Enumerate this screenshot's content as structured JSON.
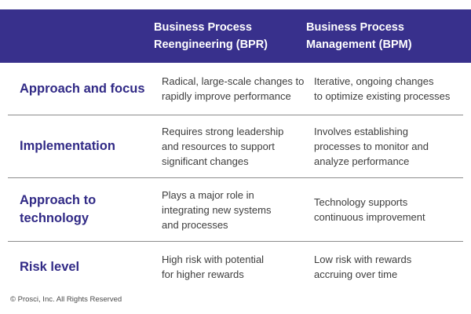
{
  "header": {
    "bpr_label": "Business Process\nReengineering (BPR)",
    "bpm_label": "Business Process\nManagement (BPM)"
  },
  "rows": [
    {
      "label": "Approach and focus",
      "bpr": "Radical, large-scale changes to\nrapidly improve performance",
      "bpm": "Iterative, ongoing changes\nto optimize existing processes"
    },
    {
      "label": "Implementation",
      "bpr": "Requires strong leadership\nand resources to support\nsignificant changes",
      "bpm": "Involves establishing\nprocesses to monitor and\nanalyze performance"
    },
    {
      "label": "Approach to\ntechnology",
      "bpr": "Plays a major role in\nintegrating new systems\nand processes",
      "bpm": "Technology supports\ncontinuous improvement"
    },
    {
      "label": "Risk level",
      "bpr": "High risk with potential\nfor higher rewards",
      "bpm": "Low risk with rewards\naccruing over time"
    }
  ],
  "footer": {
    "copyright": "© Prosci, Inc. All Rights Reserved"
  },
  "colors": {
    "header_bg": "#38308C",
    "label_text": "#312A86",
    "body_text": "#3D3D3D",
    "divider": "#8C8C8C"
  }
}
